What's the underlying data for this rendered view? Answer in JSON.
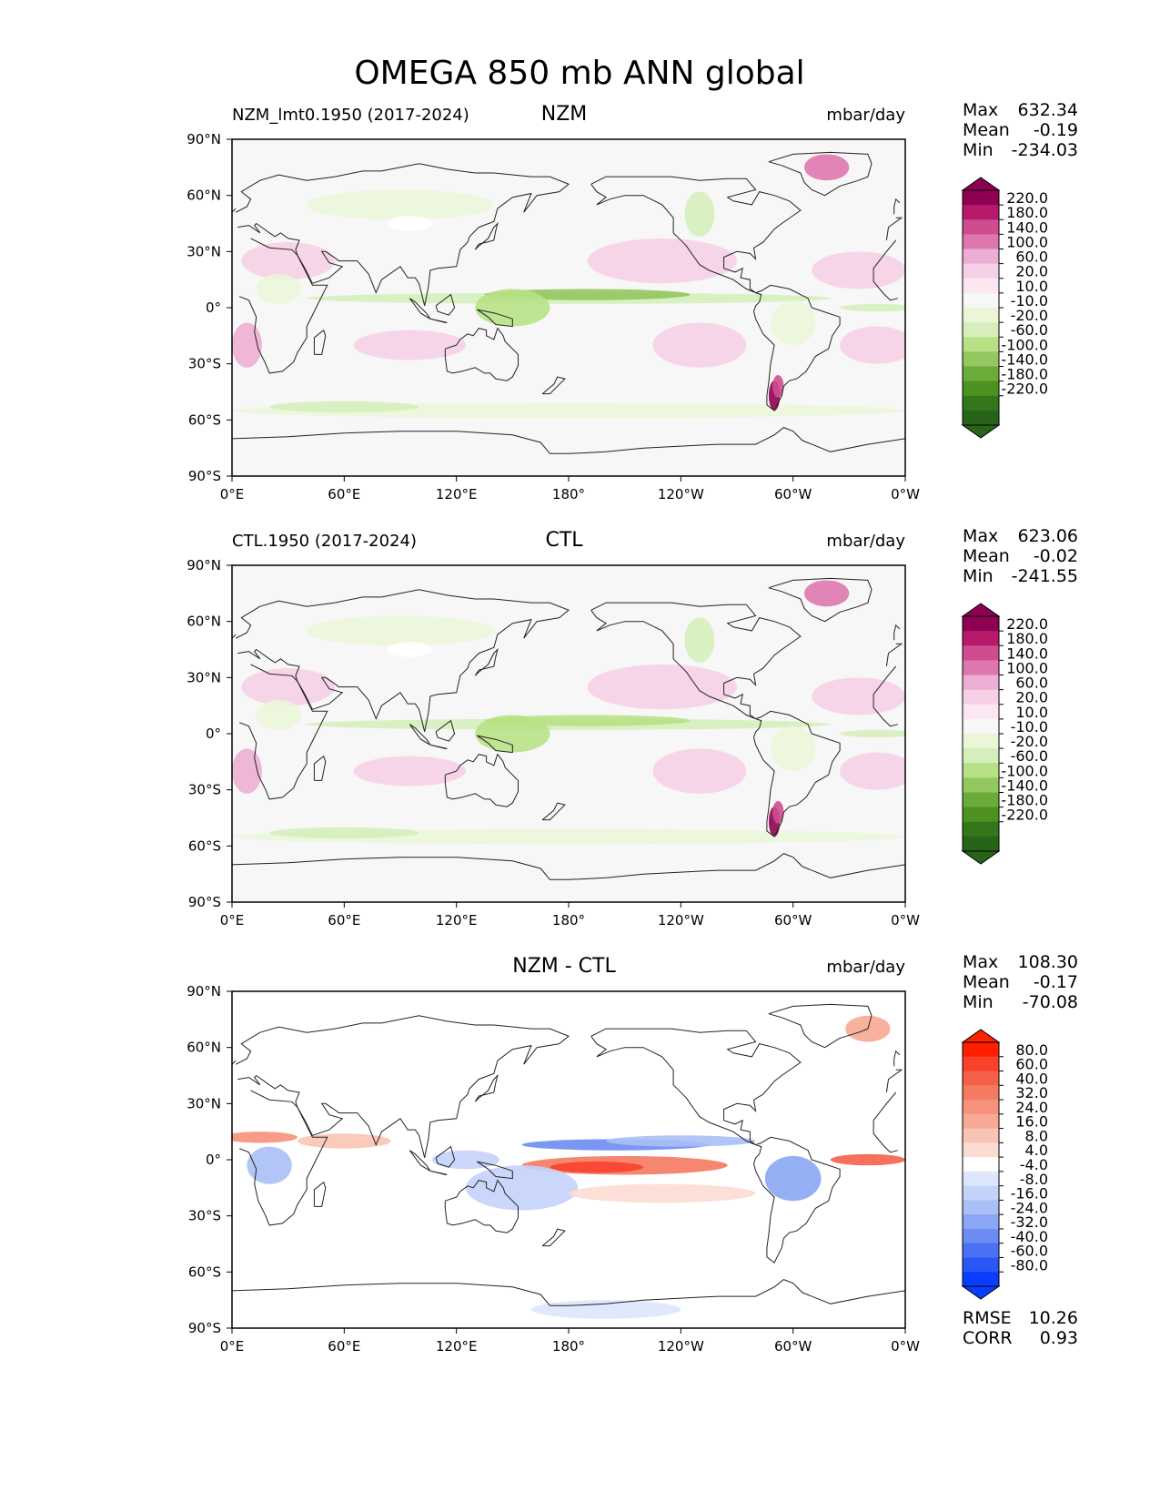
{
  "title": "OMEGA 850 mb ANN global",
  "chart_data": [
    {
      "type": "heatmap",
      "panel_title": "NZM",
      "left_label": "NZM_lmt0.1950 (2017-2024)",
      "units": "mbar/day",
      "stats": [
        {
          "label": "Max",
          "value": "632.34"
        },
        {
          "label": "Mean",
          "value": "-0.19"
        },
        {
          "label": "Min",
          "value": "-234.03"
        }
      ],
      "colorbar": {
        "ticks": [
          "220.0",
          "180.0",
          "140.0",
          "100.0",
          "60.0",
          "20.0",
          "10.0",
          "-10.0",
          "-20.0",
          "-60.0",
          "-100.0",
          "-140.0",
          "-180.0",
          "-220.0"
        ],
        "colors": [
          "#8e0152",
          "#b7196b",
          "#cf4d8f",
          "#de77ae",
          "#ecaed3",
          "#f6d0e6",
          "#fbe6f1",
          "#f7f7f7",
          "#ebf6d9",
          "#d5eebb",
          "#b8e186",
          "#94c75f",
          "#6aab39",
          "#4d9221",
          "#34761a",
          "#276419"
        ]
      }
    },
    {
      "type": "heatmap",
      "panel_title": "CTL",
      "left_label": "CTL.1950 (2017-2024)",
      "units": "mbar/day",
      "stats": [
        {
          "label": "Max",
          "value": "623.06"
        },
        {
          "label": "Mean",
          "value": "-0.02"
        },
        {
          "label": "Min",
          "value": "-241.55"
        }
      ],
      "colorbar": {
        "ticks": [
          "220.0",
          "180.0",
          "140.0",
          "100.0",
          "60.0",
          "20.0",
          "10.0",
          "-10.0",
          "-20.0",
          "-60.0",
          "-100.0",
          "-140.0",
          "-180.0",
          "-220.0"
        ],
        "colors": [
          "#8e0152",
          "#b7196b",
          "#cf4d8f",
          "#de77ae",
          "#ecaed3",
          "#f6d0e6",
          "#fbe6f1",
          "#f7f7f7",
          "#ebf6d9",
          "#d5eebb",
          "#b8e186",
          "#94c75f",
          "#6aab39",
          "#4d9221",
          "#34761a",
          "#276419"
        ]
      }
    },
    {
      "type": "heatmap",
      "panel_title": "NZM - CTL",
      "left_label": "",
      "units": "mbar/day",
      "stats": [
        {
          "label": "Max",
          "value": "108.30"
        },
        {
          "label": "Mean",
          "value": "-0.17"
        },
        {
          "label": "Min",
          "value": "-70.08"
        }
      ],
      "extra_stats": [
        {
          "label": "RMSE",
          "value": "10.26"
        },
        {
          "label": "CORR",
          "value": "0.93"
        }
      ],
      "colorbar": {
        "ticks": [
          "80.0",
          "60.0",
          "40.0",
          "32.0",
          "24.0",
          "16.0",
          "8.0",
          "4.0",
          "-4.0",
          "-8.0",
          "-16.0",
          "-24.0",
          "-32.0",
          "-40.0",
          "-60.0",
          "-80.0"
        ],
        "colors": [
          "#ff2000",
          "#f9412c",
          "#f6604a",
          "#f47a62",
          "#f5917c",
          "#f7a995",
          "#f9c4b4",
          "#fcdcd2",
          "#ffffff",
          "#dde6fb",
          "#c4d3f9",
          "#a9bff6",
          "#8aa6f4",
          "#6b8cf3",
          "#4b71f4",
          "#2957f6",
          "#0a3cff"
        ]
      }
    }
  ],
  "lat_ticks": [
    "90°N",
    "60°N",
    "30°N",
    "0°",
    "30°S",
    "60°S",
    "90°S"
  ],
  "lon_ticks": [
    "0°E",
    "60°E",
    "120°E",
    "180°",
    "120°W",
    "60°W",
    "0°W"
  ]
}
